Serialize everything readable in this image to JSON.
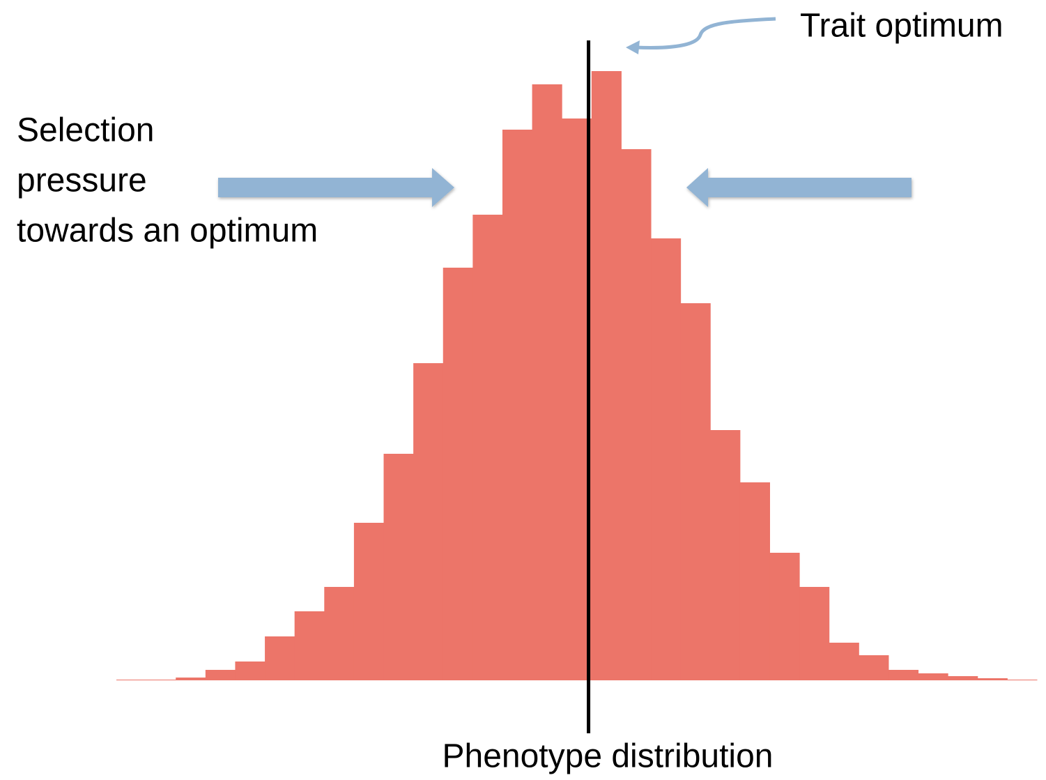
{
  "chart_data": {
    "type": "histogram",
    "bins": [
      0,
      1,
      2,
      3,
      4,
      5,
      6,
      7,
      8,
      9,
      10,
      11,
      12,
      13,
      14,
      15,
      16,
      17,
      18,
      19,
      20,
      21,
      22,
      23,
      24,
      25,
      26,
      27,
      28,
      29,
      30,
      31
    ],
    "counts": [
      1,
      1,
      4,
      15,
      27,
      63,
      99,
      134,
      226,
      325,
      455,
      592,
      668,
      790,
      855,
      806,
      874,
      762,
      634,
      541,
      359,
      284,
      183,
      134,
      54,
      36,
      15,
      10,
      6,
      3,
      1
    ],
    "color": "#ec7569",
    "xlim": [
      0,
      31
    ],
    "ylim": [
      0,
      874
    ],
    "optimum": 15.9,
    "optimum_label": "Trait optimum",
    "annotation_lines": [
      "Selection",
      "pressure",
      "towards an optimum"
    ],
    "xlabel": "Phenotype distribution"
  }
}
